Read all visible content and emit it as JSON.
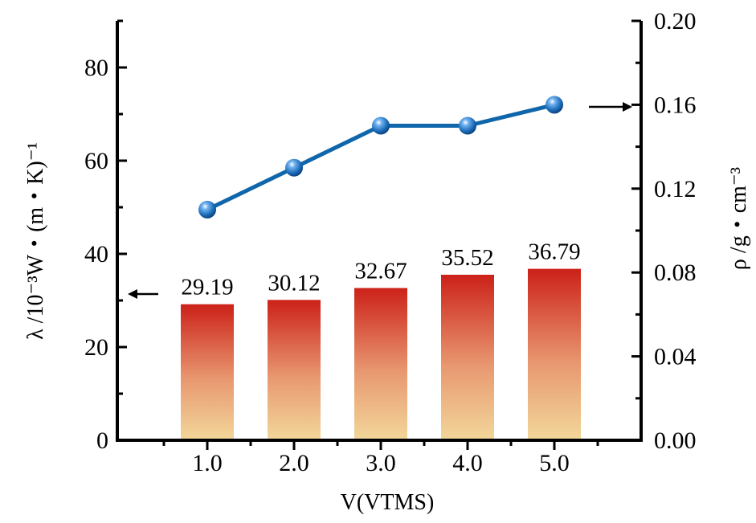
{
  "chart_data": {
    "type": "bar+line",
    "categories": [
      "1.0",
      "2.0",
      "3.0",
      "4.0",
      "5.0"
    ],
    "x": [
      1.0,
      2.0,
      3.0,
      4.0,
      5.0
    ],
    "xlabel": "V(VTMS)",
    "ylabel_left": "λ /10⁻³W・(m・K)⁻¹",
    "ylabel_right": "ρ /g・cm⁻³",
    "ylim_left": [
      0,
      90
    ],
    "ylim_right": [
      0,
      0.2
    ],
    "yticks_left": [
      "0",
      "20",
      "40",
      "60",
      "80"
    ],
    "yticks_right": [
      "0.00",
      "0.04",
      "0.08",
      "0.12",
      "0.16",
      "0.20"
    ],
    "series": [
      {
        "type": "bar",
        "axis": "left",
        "values": [
          29.19,
          30.12,
          32.67,
          35.52,
          36.79
        ],
        "labels": [
          "29.19",
          "30.12",
          "32.67",
          "35.52",
          "36.79"
        ],
        "color_top": "#cc2119",
        "color_bottom": "#f2d79a"
      },
      {
        "type": "line",
        "axis": "right",
        "values": [
          0.11,
          0.13,
          0.15,
          0.15,
          0.16
        ],
        "color": "#0f66aa",
        "marker_color": "#1b6bb8"
      }
    ],
    "annotations": [
      {
        "type": "arrow",
        "direction": "left",
        "indicates": "bars use left axis"
      },
      {
        "type": "arrow",
        "direction": "right",
        "indicates": "line uses right axis"
      }
    ],
    "grid": false
  }
}
